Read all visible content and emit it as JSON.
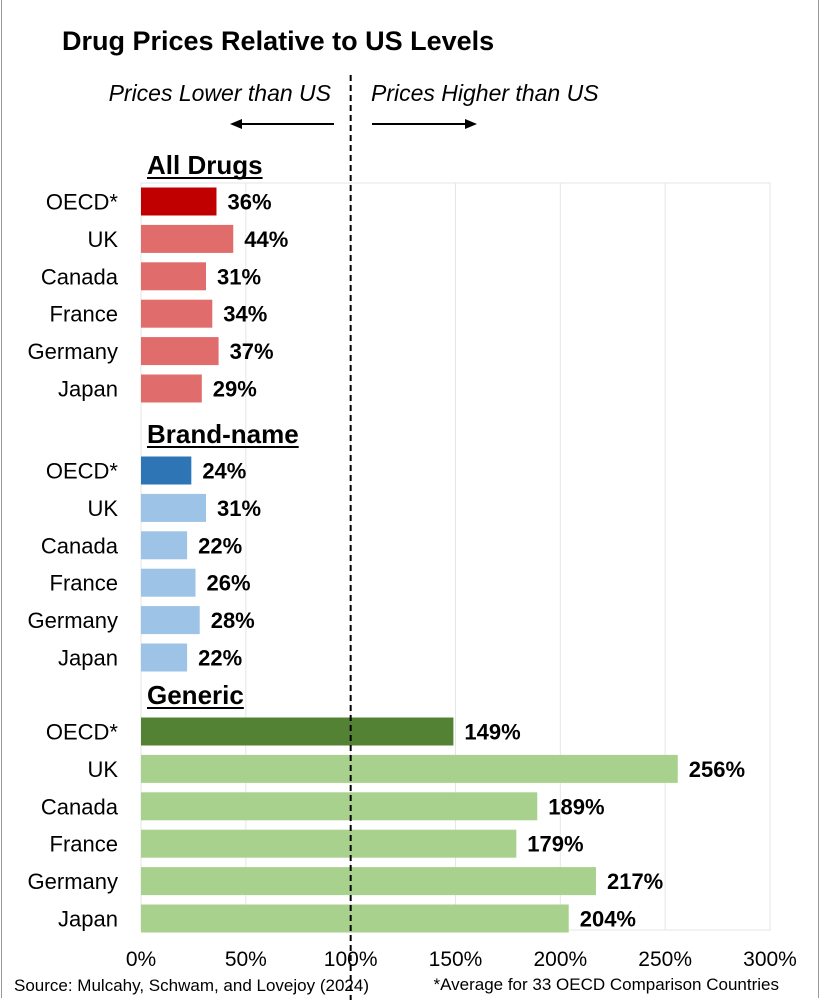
{
  "chart_data": {
    "type": "bar",
    "orientation": "horizontal",
    "title": "Drug Prices Relative to US Levels",
    "annotations": {
      "left": "Prices Lower than US",
      "right": "Prices Higher than US",
      "reference_value": 100
    },
    "xlim": [
      0,
      300
    ],
    "x_ticks": [
      0,
      50,
      100,
      150,
      200,
      250,
      300
    ],
    "x_tick_labels": [
      "0%",
      "50%",
      "100%",
      "150%",
      "200%",
      "250%",
      "300%"
    ],
    "grid": "vertical",
    "groups": [
      {
        "name": "All Drugs",
        "colors": {
          "highlight": "#c00000",
          "bar": "#e06c6c"
        },
        "categories": [
          "OECD*",
          "UK",
          "Canada",
          "France",
          "Germany",
          "Japan"
        ],
        "values": [
          36,
          44,
          31,
          34,
          37,
          29
        ],
        "labels": [
          "36%",
          "44%",
          "31%",
          "34%",
          "37%",
          "29%"
        ]
      },
      {
        "name": "Brand-name",
        "colors": {
          "highlight": "#2e75b6",
          "bar": "#9dc3e6"
        },
        "categories": [
          "OECD*",
          "UK",
          "Canada",
          "France",
          "Germany",
          "Japan"
        ],
        "values": [
          24,
          31,
          22,
          26,
          28,
          22
        ],
        "labels": [
          "24%",
          "31%",
          "22%",
          "26%",
          "28%",
          "22%"
        ]
      },
      {
        "name": "Generic",
        "colors": {
          "highlight": "#548235",
          "bar": "#a9d18e"
        },
        "categories": [
          "OECD*",
          "UK",
          "Canada",
          "France",
          "Germany",
          "Japan"
        ],
        "values": [
          149,
          256,
          189,
          179,
          217,
          204
        ],
        "labels": [
          "149%",
          "256%",
          "189%",
          "179%",
          "217%",
          "204%"
        ]
      }
    ]
  },
  "footer": {
    "source": "Source: Mulcahy, Schwam, and Lovejoy (2024)",
    "note": "*Average for 33 OECD Comparison Countries"
  }
}
